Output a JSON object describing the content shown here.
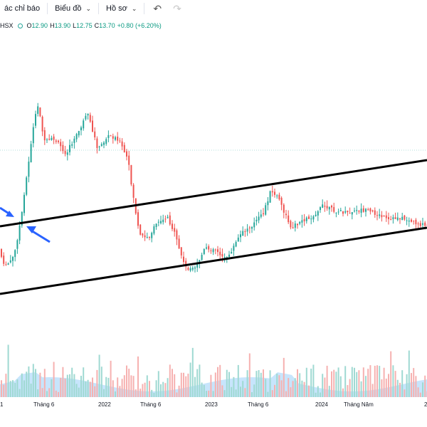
{
  "toolbar": {
    "indicators": "ác chỉ báo",
    "chart_menu": "Biểu đồ",
    "profile_menu": "Hồ sơ",
    "chevron_icon": "chevron-down",
    "undo_icon": "undo",
    "redo_icon": "redo"
  },
  "legend": {
    "symbol": "HSX",
    "open_label": "O",
    "open": "12.90",
    "high_label": "H",
    "high": "13.90",
    "low_label": "L",
    "low": "12.75",
    "close_label": "C",
    "close": "13.70",
    "change": "+0.80 (+6.20%)"
  },
  "time_axis": {
    "labels": [
      "1",
      "Tháng 6",
      "2022",
      "Tháng 6",
      "2023",
      "Tháng 6",
      "2024",
      "Tháng Năm",
      "2"
    ]
  },
  "colors": {
    "up": "#26a69a",
    "down": "#ef5350",
    "channel": "#000000",
    "arrow": "#2962ff",
    "volume_area": "#2196f3"
  },
  "chart_data": {
    "type": "candlestick",
    "annotations": [
      "upper channel trendline",
      "lower channel trendline",
      "two blue arrows at breakout"
    ],
    "volume_pane": true
  }
}
